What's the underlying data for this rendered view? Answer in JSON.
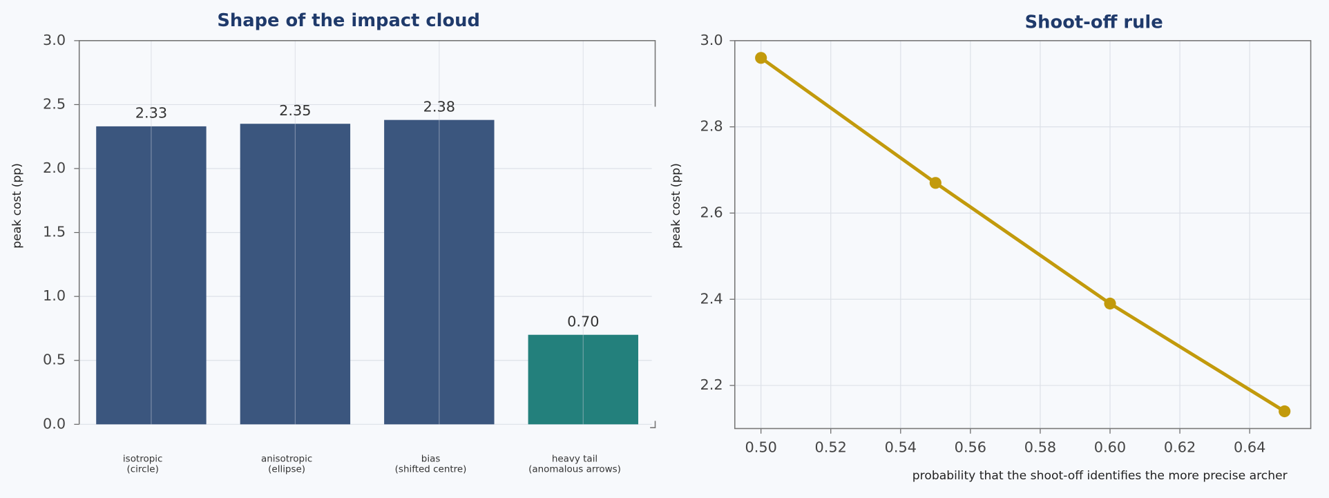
{
  "chart_data": [
    {
      "type": "bar",
      "title": "Shape of the impact cloud",
      "ylabel": "peak cost (pp)",
      "categories": [
        "isotropic\n(circle)",
        "anisotropic\n(ellipse)",
        "bias\n(shifted centre)",
        "heavy tail\n(anomalous arrows)"
      ],
      "values": [
        2.33,
        2.35,
        2.38,
        0.7
      ],
      "value_labels": [
        "2.33",
        "2.35",
        "2.38",
        "0.70"
      ],
      "colors": [
        "#3b567e",
        "#3b567e",
        "#3b567e",
        "#23807c"
      ],
      "ylim": [
        0,
        3
      ],
      "yticks": [
        {
          "value": 0,
          "label": "0.0"
        },
        0.5,
        {
          "value": 1,
          "label": "1.0"
        },
        1.5,
        {
          "value": 2,
          "label": "2.0"
        },
        2.5,
        {
          "value": 3,
          "label": "3.0"
        }
      ],
      "grid": true
    },
    {
      "type": "line",
      "title": "Shoot-off rule",
      "ylabel": "peak cost (pp)",
      "xlabel": "probability that the shoot-off identifies the more precise archer",
      "x": [
        0.5,
        0.55,
        0.6,
        0.65
      ],
      "values": [
        2.96,
        2.67,
        2.39,
        2.14
      ],
      "color": "#c29a0c",
      "xlim": [
        0.4925,
        0.6575
      ],
      "ylim": [
        2.1,
        3.0
      ],
      "xticks": [
        {
          "value": 0.5,
          "label": "0.50"
        },
        0.52,
        0.54,
        0.56,
        0.58,
        {
          "value": 0.6,
          "label": "0.60"
        },
        0.62,
        0.64
      ],
      "yticks": [
        2.2,
        2.4,
        2.6,
        2.8,
        {
          "value": 3,
          "label": "3.0"
        }
      ],
      "grid": true
    }
  ]
}
